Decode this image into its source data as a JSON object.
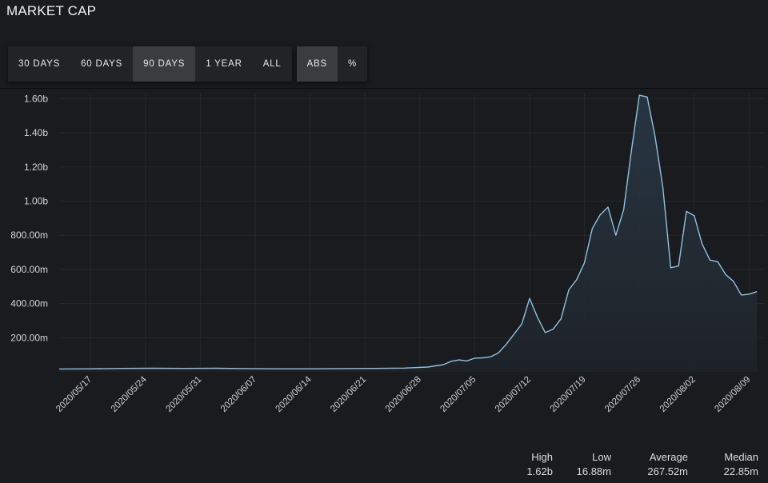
{
  "title": "MARKET CAP",
  "toolbar": {
    "ranges": [
      "30 DAYS",
      "60 DAYS",
      "90 DAYS",
      "1 YEAR",
      "ALL"
    ],
    "active_range": "90 DAYS",
    "modes": [
      "ABS",
      "%"
    ],
    "active_mode": "ABS"
  },
  "stats": [
    {
      "label": "High",
      "value": "1.62b"
    },
    {
      "label": "Low",
      "value": "16.88m"
    },
    {
      "label": "Average",
      "value": "267.52m"
    },
    {
      "label": "Median",
      "value": "22.85m"
    }
  ],
  "colors": {
    "background": "#1a1b1e",
    "line": "#8fc1e0",
    "grid": "#26282c"
  },
  "chart_data": {
    "type": "area",
    "title": "",
    "xlabel": "",
    "ylabel": "",
    "ylim": [
      0,
      1630000000.0
    ],
    "yticks": [
      200000000.0,
      400000000.0,
      600000000.0,
      800000000.0,
      1000000000.0,
      1200000000.0,
      1400000000.0,
      1600000000.0
    ],
    "ytick_labels": [
      "200.00m",
      "400.00m",
      "600.00m",
      "800.00m",
      "1.00b",
      "1.20b",
      "1.40b",
      "1.60b"
    ],
    "xlim": [
      "2020-05-13",
      "2020-08-11"
    ],
    "xticks": [
      "2020-05-17",
      "2020-05-24",
      "2020-05-31",
      "2020-06-07",
      "2020-06-14",
      "2020-06-21",
      "2020-06-28",
      "2020-07-05",
      "2020-07-12",
      "2020-07-19",
      "2020-07-26",
      "2020-08-02",
      "2020-08-09"
    ],
    "grid": true,
    "series": [
      {
        "x": [
          "2020-05-13",
          "2020-05-17",
          "2020-05-21",
          "2020-05-25",
          "2020-05-29",
          "2020-06-02",
          "2020-06-06",
          "2020-06-10",
          "2020-06-14",
          "2020-06-18",
          "2020-06-22",
          "2020-06-26",
          "2020-06-29",
          "2020-07-01",
          "2020-07-02",
          "2020-07-03",
          "2020-07-04",
          "2020-07-05",
          "2020-07-06",
          "2020-07-07",
          "2020-07-08",
          "2020-07-09",
          "2020-07-10",
          "2020-07-11",
          "2020-07-12",
          "2020-07-13",
          "2020-07-14",
          "2020-07-15",
          "2020-07-16",
          "2020-07-17",
          "2020-07-18",
          "2020-07-19",
          "2020-07-20",
          "2020-07-21",
          "2020-07-22",
          "2020-07-23",
          "2020-07-24",
          "2020-07-25",
          "2020-07-26",
          "2020-07-27",
          "2020-07-28",
          "2020-07-29",
          "2020-07-30",
          "2020-07-31",
          "2020-08-01",
          "2020-08-02",
          "2020-08-03",
          "2020-08-04",
          "2020-08-05",
          "2020-08-06",
          "2020-08-07",
          "2020-08-08",
          "2020-08-09",
          "2020-08-10"
        ],
        "values": [
          17000000,
          18000000,
          20000000,
          21000000,
          20000000,
          21000000,
          19000000,
          18000000,
          18000000,
          19000000,
          20000000,
          22000000,
          28000000,
          42000000,
          62000000,
          70000000,
          64000000,
          80000000,
          82000000,
          88000000,
          110000000,
          160000000,
          220000000,
          280000000,
          430000000,
          320000000,
          230000000,
          250000000,
          310000000,
          480000000,
          540000000,
          640000000,
          840000000,
          920000000,
          965000000,
          800000000,
          950000000,
          1300000000,
          1620000000,
          1610000000,
          1380000000,
          1080000000,
          610000000,
          620000000,
          940000000,
          915000000,
          750000000,
          655000000,
          645000000,
          570000000,
          530000000,
          450000000,
          455000000,
          470000000
        ]
      }
    ]
  }
}
